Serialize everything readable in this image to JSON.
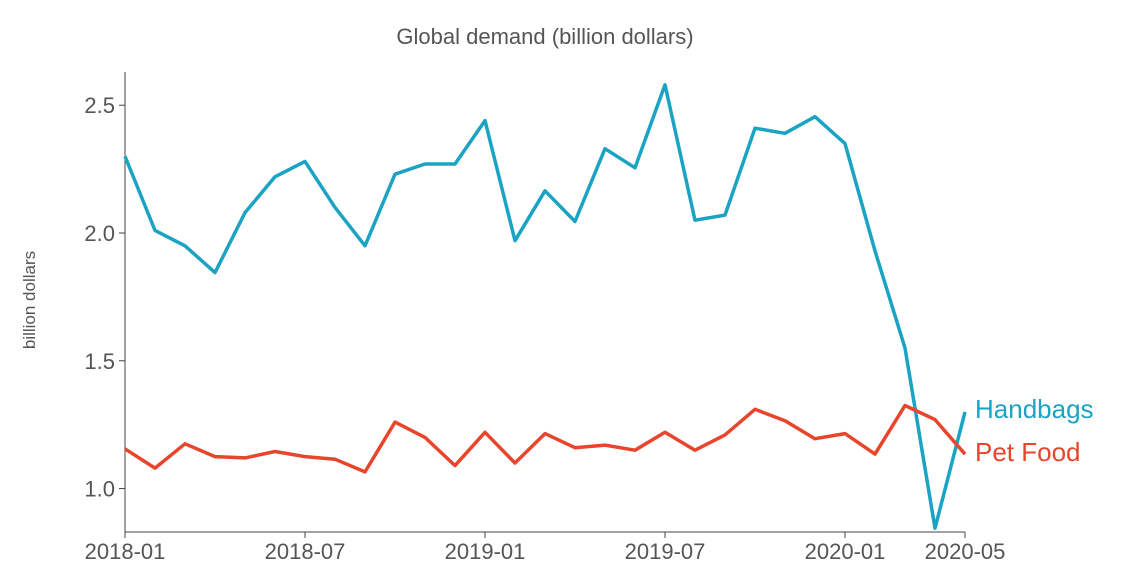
{
  "chart_data": {
    "type": "line",
    "title": "Global demand (billion dollars)",
    "ylabel": "billion dollars",
    "xlabel": "",
    "x": [
      "2018-01",
      "2018-02",
      "2018-03",
      "2018-04",
      "2018-05",
      "2018-06",
      "2018-07",
      "2018-08",
      "2018-09",
      "2018-10",
      "2018-11",
      "2018-12",
      "2019-01",
      "2019-02",
      "2019-03",
      "2019-04",
      "2019-05",
      "2019-06",
      "2019-07",
      "2019-08",
      "2019-09",
      "2019-10",
      "2019-11",
      "2019-12",
      "2020-01",
      "2020-02",
      "2020-03",
      "2020-04",
      "2020-05"
    ],
    "xticks": [
      "2018-01",
      "2018-07",
      "2019-01",
      "2019-07",
      "2020-01",
      "2020-05"
    ],
    "yticks": [
      1.0,
      1.5,
      2.0,
      2.5
    ],
    "ytick_labels": [
      "1.0",
      "1.5",
      "2.0",
      "2.5"
    ],
    "ylim": [
      0.83,
      2.63
    ],
    "grid": false,
    "legend": "inline-right",
    "series": [
      {
        "name": "Handbags",
        "color": "#1aa3c2",
        "values": [
          2.3,
          2.01,
          1.95,
          1.845,
          2.08,
          2.22,
          2.28,
          2.1,
          1.95,
          2.23,
          2.27,
          2.27,
          2.44,
          1.97,
          2.165,
          2.045,
          2.33,
          2.255,
          2.58,
          2.05,
          2.07,
          2.41,
          2.39,
          2.455,
          2.35,
          1.93,
          1.55,
          0.845,
          1.3
        ]
      },
      {
        "name": "Pet Food",
        "color": "#e8452c",
        "values": [
          1.155,
          1.08,
          1.175,
          1.125,
          1.12,
          1.145,
          1.125,
          1.115,
          1.065,
          1.26,
          1.2,
          1.09,
          1.22,
          1.1,
          1.215,
          1.16,
          1.17,
          1.15,
          1.22,
          1.15,
          1.21,
          1.31,
          1.265,
          1.195,
          1.215,
          1.135,
          1.325,
          1.27,
          1.135
        ]
      }
    ]
  }
}
